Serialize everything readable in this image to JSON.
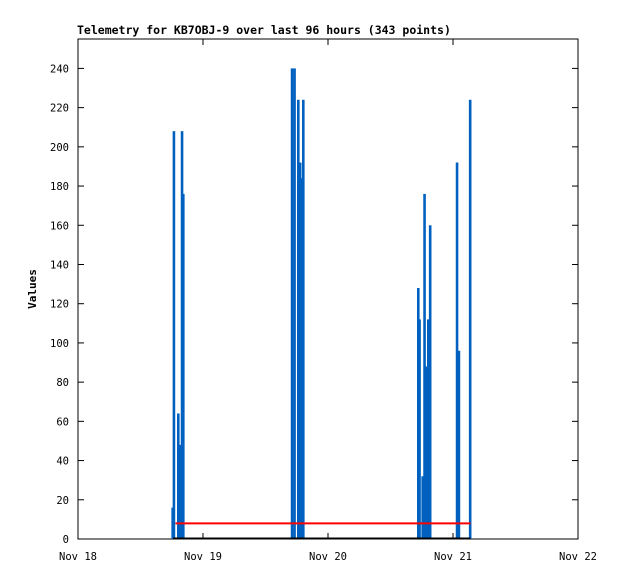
{
  "chart_data": {
    "type": "bar",
    "title": "Telemetry for KB7OBJ-9 over last 96 hours (343 points)",
    "ylabel": "Values",
    "xlabel": "",
    "xlim": [
      0,
      4
    ],
    "ylim": [
      0,
      255
    ],
    "x_ticks": [
      {
        "value": 0,
        "label": "Nov 18"
      },
      {
        "value": 1,
        "label": "Nov 19"
      },
      {
        "value": 2,
        "label": "Nov 20"
      },
      {
        "value": 3,
        "label": "Nov 21"
      },
      {
        "value": 4,
        "label": "Nov 22"
      }
    ],
    "y_ticks": [
      0,
      20,
      40,
      60,
      80,
      100,
      120,
      140,
      160,
      180,
      200,
      220,
      240
    ],
    "grid": false,
    "series": [
      {
        "color": "#0060c0",
        "style": "bars",
        "points": [
          [
            0.755,
            16
          ],
          [
            0.765,
            208
          ],
          [
            0.8,
            64
          ],
          [
            0.815,
            48
          ],
          [
            0.83,
            208
          ],
          [
            0.84,
            176
          ],
          [
            1.71,
            240
          ],
          [
            1.73,
            240
          ],
          [
            1.76,
            224
          ],
          [
            1.775,
            192
          ],
          [
            1.785,
            184
          ],
          [
            1.79,
            168
          ],
          [
            1.8,
            224
          ],
          [
            2.72,
            128
          ],
          [
            2.73,
            112
          ],
          [
            2.755,
            32
          ],
          [
            2.77,
            176
          ],
          [
            2.78,
            88
          ],
          [
            2.8,
            112
          ],
          [
            2.815,
            160
          ],
          [
            3.03,
            192
          ],
          [
            3.045,
            96
          ],
          [
            3.135,
            224
          ]
        ]
      },
      {
        "color": "#ff0000",
        "style": "line",
        "points": [
          [
            0.78,
            8
          ],
          [
            3.14,
            8
          ]
        ]
      },
      {
        "color": "#000000",
        "style": "line",
        "points": [
          [
            0.76,
            0
          ],
          [
            3.14,
            0
          ]
        ]
      }
    ]
  }
}
